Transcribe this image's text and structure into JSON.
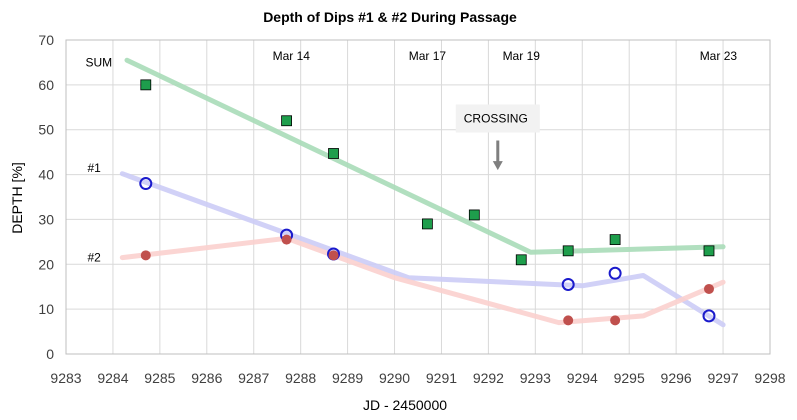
{
  "chart_data": {
    "type": "scatter",
    "title": "Depth of Dips #1 & #2 During Passage",
    "xlabel": "JD - 2450000",
    "ylabel": "DEPTH [%]",
    "xlim": [
      9283,
      9298
    ],
    "ylim": [
      0,
      70
    ],
    "xticks": [
      "9283",
      "9284",
      "9285",
      "9286",
      "9287",
      "9288",
      "9289",
      "9290",
      "9291",
      "9292",
      "9293",
      "9294",
      "9295",
      "9296",
      "9297",
      "9298"
    ],
    "yticks": [
      "0",
      "10",
      "20",
      "30",
      "40",
      "50",
      "60",
      "70"
    ],
    "grid": true,
    "series": [
      {
        "name": "SUM",
        "marker": "square",
        "color": "#1e9e4c",
        "points": [
          [
            9284.7,
            60
          ],
          [
            9287.7,
            52
          ],
          [
            9288.7,
            44.7
          ],
          [
            9290.7,
            29
          ],
          [
            9291.7,
            31
          ],
          [
            9292.7,
            21
          ],
          [
            9293.7,
            23
          ],
          [
            9294.7,
            25.5
          ],
          [
            9296.7,
            23
          ]
        ],
        "trend": [
          [
            9284.3,
            65.5
          ],
          [
            9292.9,
            22.7
          ],
          [
            9297,
            23.9
          ]
        ],
        "trend_color": "#a8dcb8"
      },
      {
        "name": "#1",
        "marker": "open-circle",
        "color": "#1a1acc",
        "points": [
          [
            9284.7,
            38
          ],
          [
            9287.7,
            26.5
          ],
          [
            9288.7,
            22.3
          ],
          [
            9293.7,
            15.5
          ],
          [
            9294.7,
            18
          ],
          [
            9296.7,
            8.5
          ]
        ],
        "trend": [
          [
            9284.2,
            40.2
          ],
          [
            9290.3,
            17
          ],
          [
            9294,
            15.2
          ],
          [
            9295.3,
            17.5
          ],
          [
            9297,
            6.5
          ]
        ],
        "trend_color": "#ccccf6"
      },
      {
        "name": "#2",
        "marker": "filled-circle",
        "color": "#c0504d",
        "points": [
          [
            9284.7,
            22
          ],
          [
            9287.7,
            25.5
          ],
          [
            9288.7,
            22
          ],
          [
            9293.7,
            7.5
          ],
          [
            9294.7,
            7.5
          ],
          [
            9296.7,
            14.5
          ]
        ],
        "trend": [
          [
            9284.2,
            21.5
          ],
          [
            9287.7,
            25.8
          ],
          [
            9290,
            17
          ],
          [
            9293.5,
            7
          ],
          [
            9295.3,
            8.5
          ],
          [
            9297,
            16
          ]
        ],
        "trend_color": "#fbd0ce"
      }
    ],
    "date_labels": [
      {
        "text": "Mar 14",
        "x": 9287.8
      },
      {
        "text": "Mar 17",
        "x": 9290.7
      },
      {
        "text": "Mar 19",
        "x": 9292.7
      },
      {
        "text": "Mar 23",
        "x": 9296.9
      }
    ],
    "annotation": {
      "text": "CROSSING",
      "x": 9292.2,
      "y": 52.5,
      "arrow_to_y": 41
    },
    "series_labels": [
      {
        "text": "SUM",
        "x": 9283.7,
        "y": 65
      },
      {
        "text": "#1",
        "x": 9283.6,
        "y": 41.5
      },
      {
        "text": "#2",
        "x": 9283.6,
        "y": 21.5
      }
    ]
  }
}
